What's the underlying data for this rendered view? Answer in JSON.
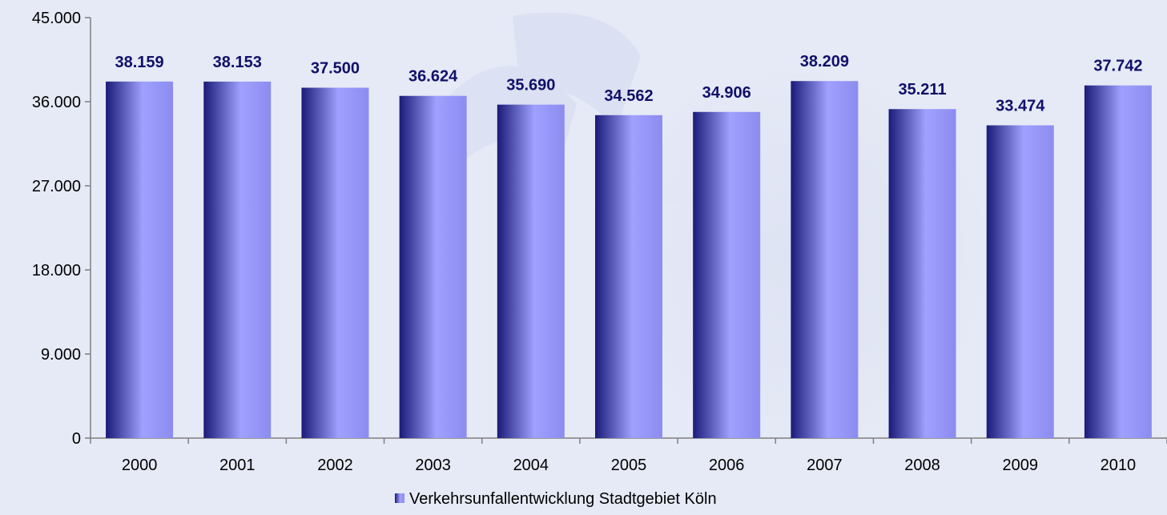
{
  "chart_data": {
    "type": "bar",
    "categories": [
      "2000",
      "2001",
      "2002",
      "2003",
      "2004",
      "2005",
      "2006",
      "2007",
      "2008",
      "2009",
      "2010"
    ],
    "series": [
      {
        "name": "Verkehrsunfallentwicklung Stadtgebiet Köln",
        "values": [
          38159,
          38153,
          37500,
          36624,
          35690,
          34562,
          34906,
          38209,
          35211,
          33474,
          37742
        ],
        "labels": [
          "38.159",
          "38.153",
          "37.500",
          "36.624",
          "35.690",
          "34.562",
          "34.906",
          "38.209",
          "35.211",
          "33.474",
          "37.742"
        ]
      }
    ],
    "yticks": [
      0,
      9000,
      18000,
      27000,
      36000,
      45000
    ],
    "ytick_labels": [
      "0",
      "9.000",
      "18.000",
      "27.000",
      "36.000",
      "45.000"
    ],
    "ylim": [
      0,
      45000
    ],
    "grid": false,
    "legend": "bottom",
    "colors": {
      "background": "#e6eaf6",
      "bar_dark": "#1a1a78",
      "bar_light": "#a0a0ff",
      "label": "#10106a",
      "axis": "#7f7f7f"
    }
  }
}
